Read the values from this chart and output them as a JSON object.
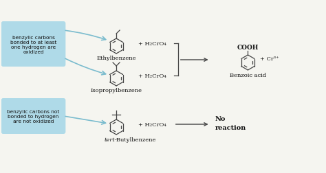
{
  "bg_color": "#f5f5f0",
  "box1_color": "#a8d8e8",
  "box2_color": "#a8d8e8",
  "box1_text": "benzylic carbons\nbonded to at least\none hydrogen are\noxidized",
  "box2_text": "benzylic carbons not\nbonded to hydrogen\nare not oxidized",
  "label_ethylbenzene": "Ethylbenzene",
  "label_isopropylbenzene": "Isopropylbenzene",
  "label_tertbutylbenzene": "tert-Butylbenzene",
  "label_benzoic_acid": "Benzoic acid",
  "reagent": "+ H₂CrO₄",
  "cooh_label": "COOH",
  "cr_label": "+ Cr³⁺",
  "no_reaction_line1": "No",
  "no_reaction_line2": "reaction",
  "arrow_color": "#444444",
  "line_color": "#444444",
  "text_color": "#111111",
  "box_arrow_color": "#7bbcce"
}
